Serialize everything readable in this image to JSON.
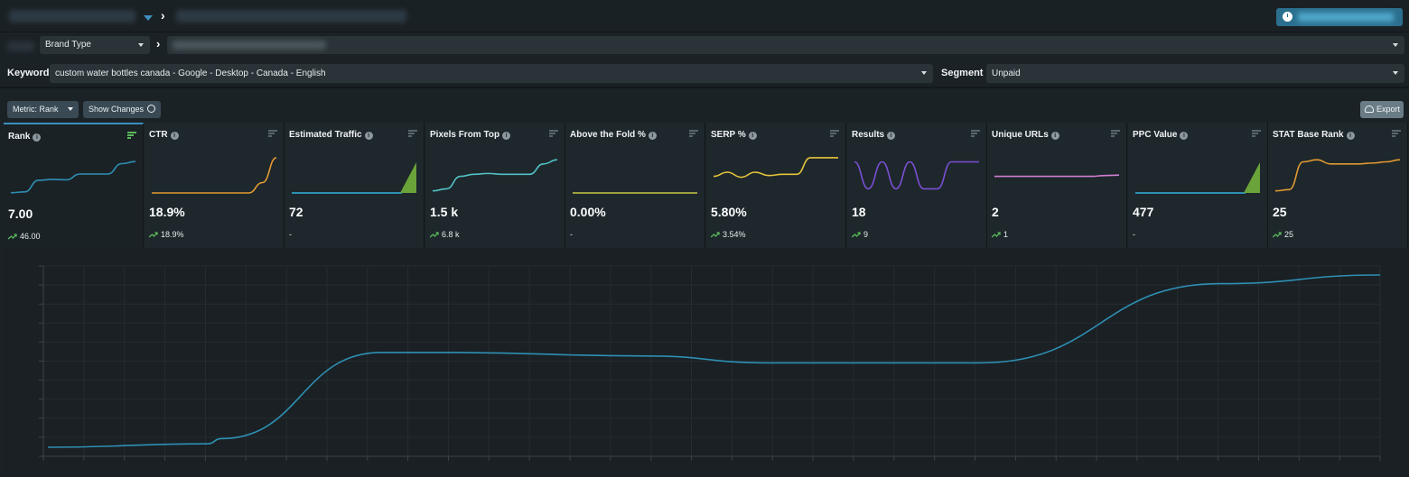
{
  "filters": {
    "brand_type": "Brand Type",
    "keyword_label": "Keyword",
    "keyword_value": "custom water bottles canada - Google - Desktop - Canada - English",
    "segment_label": "Segment",
    "segment_value": "Unpaid"
  },
  "toolbar": {
    "metric_label": "Metric:  Rank",
    "show_changes_label": "Show Changes",
    "export_label": "Export"
  },
  "colors": {
    "accent": "#3a8fbf",
    "positive": "#5cb85c"
  },
  "cards": [
    {
      "title": "Rank",
      "value": "7.00",
      "change": "46.00",
      "trend": "up",
      "color": "#2e8fb3",
      "spark": [
        0.05,
        0.07,
        0.35,
        0.37,
        0.36,
        0.5,
        0.5,
        0.5,
        0.75,
        0.8
      ],
      "active": true
    },
    {
      "title": "CTR",
      "value": "18.9%",
      "change": "18.9%",
      "trend": "up",
      "color": "#e39a33",
      "spark": [
        0,
        0,
        0,
        0,
        0,
        0,
        0,
        0,
        0.25,
        0.85
      ]
    },
    {
      "title": "Estimated Traffic",
      "value": "72",
      "change": "-",
      "trend": "none",
      "color": "#2e8fb3",
      "spark": [
        0,
        0,
        0,
        0,
        0,
        0,
        0,
        0,
        0,
        0
      ],
      "area_spike": true
    },
    {
      "title": "Pixels From Top",
      "value": "1.5 k",
      "change": "6.8 k",
      "trend": "up",
      "color": "#52c2c8",
      "spark": [
        0.05,
        0.1,
        0.4,
        0.45,
        0.47,
        0.45,
        0.45,
        0.45,
        0.7,
        0.8
      ]
    },
    {
      "title": "Above the Fold %",
      "value": "0.00%",
      "change": "-",
      "trend": "none",
      "color": "#c8c84a",
      "spark": [
        0,
        0,
        0,
        0,
        0,
        0,
        0,
        0,
        0,
        0
      ]
    },
    {
      "title": "SERP %",
      "value": "5.80%",
      "change": "3.54%",
      "trend": "up",
      "color": "#e6c53c",
      "spark": [
        0.4,
        0.5,
        0.38,
        0.5,
        0.42,
        0.45,
        0.45,
        0.85,
        0.85,
        0.85
      ]
    },
    {
      "title": "Results",
      "value": "18",
      "change": "9",
      "trend": "up",
      "color": "#7b4fd6",
      "spark": [
        0.75,
        0.1,
        0.75,
        0.1,
        0.75,
        0.1,
        0.1,
        0.75,
        0.75,
        0.75
      ]
    },
    {
      "title": "Unique URLs",
      "value": "2",
      "change": "1",
      "trend": "up",
      "color": "#d07ed0",
      "spark": [
        0.4,
        0.4,
        0.4,
        0.4,
        0.4,
        0.4,
        0.4,
        0.4,
        0.42,
        0.43
      ]
    },
    {
      "title": "PPC Value",
      "value": "477",
      "change": "-",
      "trend": "none",
      "color": "#2e8fb3",
      "spark": [
        0,
        0,
        0,
        0,
        0,
        0,
        0,
        0,
        0,
        0
      ],
      "area_spike": true
    },
    {
      "title": "STAT Base Rank",
      "value": "25",
      "change": "25",
      "trend": "up",
      "color": "#e39a33",
      "spark": [
        0.05,
        0.08,
        0.75,
        0.8,
        0.7,
        0.7,
        0.7,
        0.72,
        0.75,
        0.8
      ]
    }
  ],
  "chart_data": {
    "type": "line",
    "title": "",
    "xlabel": "",
    "ylabel": "",
    "grid": true,
    "series": [
      {
        "values": [
          0.0,
          0.02,
          0.05,
          0.55,
          0.55,
          0.53,
          0.49,
          0.49,
          0.49,
          0.95,
          1.0
        ]
      }
    ],
    "line_color": "#2e8fb3"
  }
}
